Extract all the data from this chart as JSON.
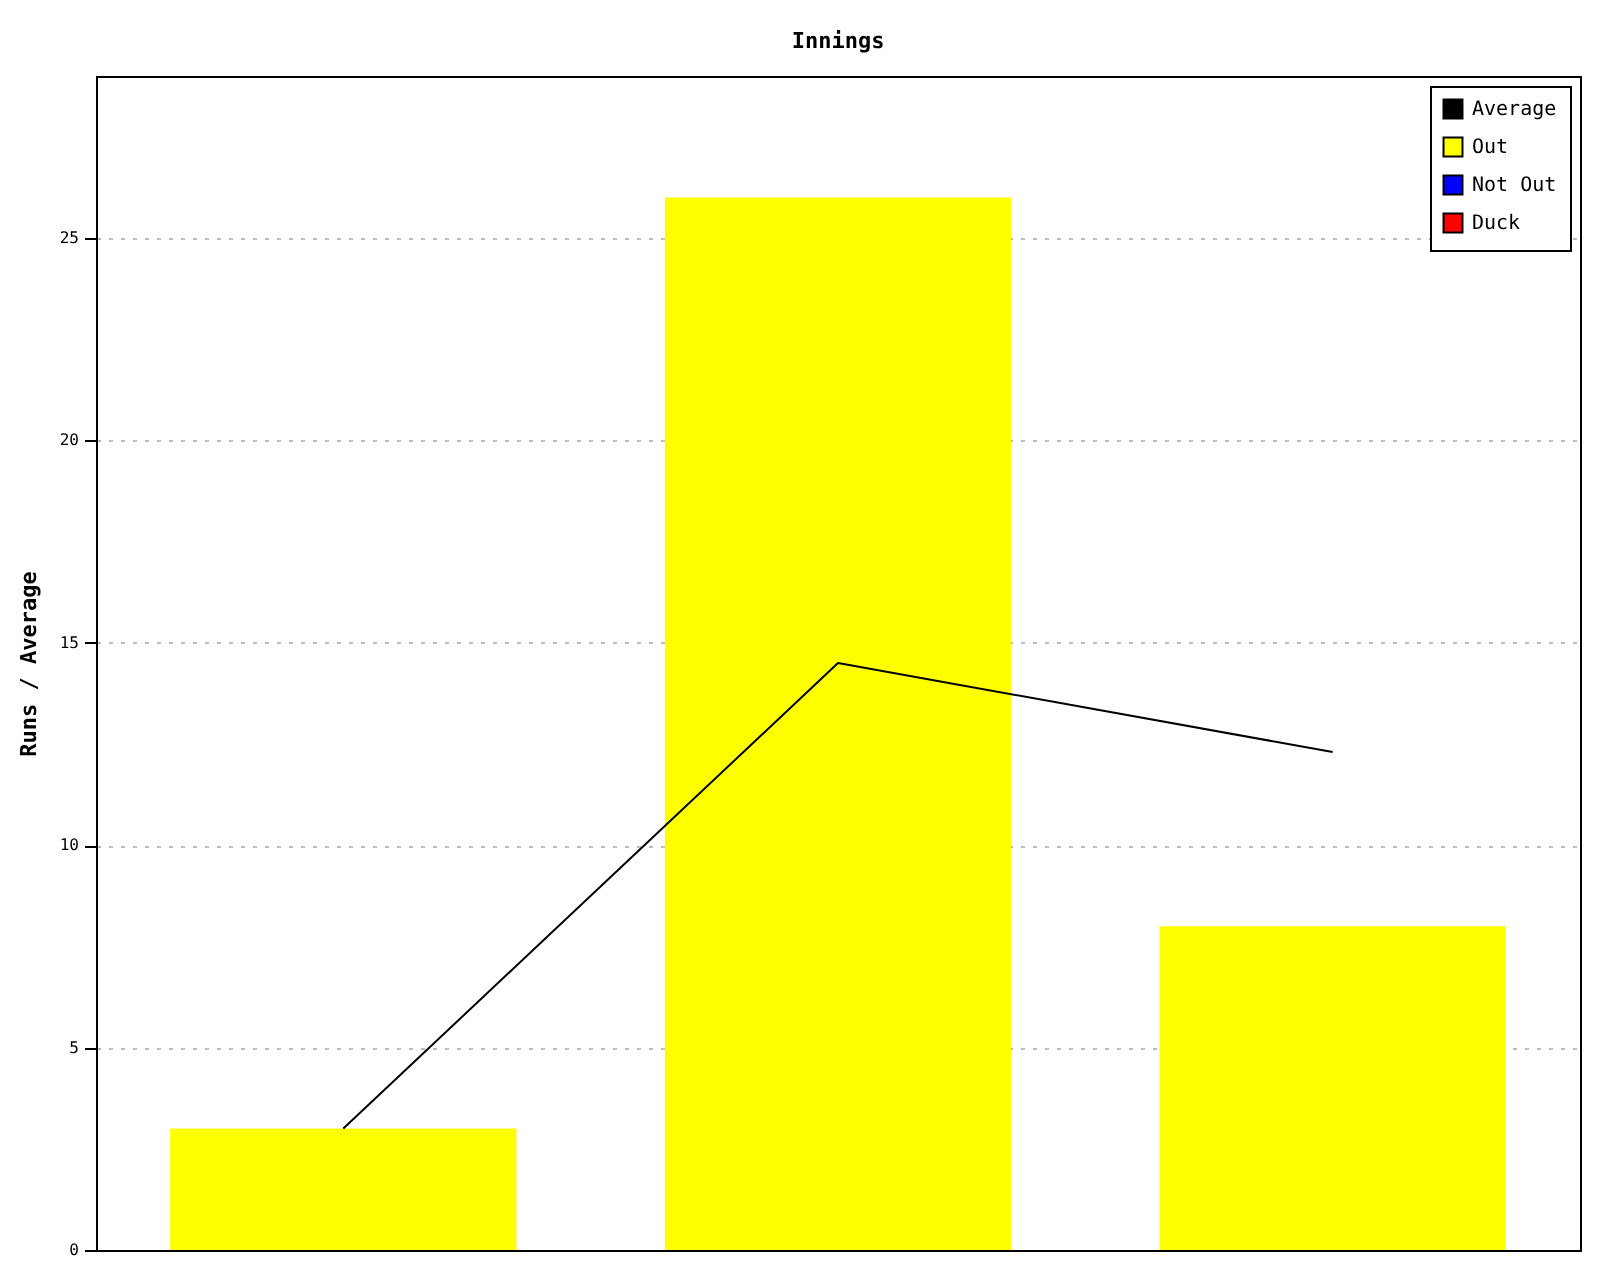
{
  "chart_data": {
    "type": "bar",
    "title": "Innings",
    "ylabel": "Runs / Average",
    "categories": [
      null,
      null,
      null
    ],
    "series": [
      {
        "name": "Average",
        "type": "line",
        "color": "#000000",
        "values": [
          3,
          14.5,
          12.3
        ]
      },
      {
        "name": "Out",
        "color": "#ffff00",
        "values": [
          3,
          26,
          8
        ]
      },
      {
        "name": "Not Out",
        "color": "#0000ff",
        "values": [
          null,
          null,
          null
        ]
      },
      {
        "name": "Duck",
        "color": "#ff0000",
        "values": [
          null,
          null,
          null
        ]
      }
    ],
    "stacked": true,
    "ylim": [
      0,
      29
    ],
    "yticks": [
      0,
      5,
      10,
      15,
      20,
      25
    ],
    "grid": "y",
    "legend": "top right"
  }
}
